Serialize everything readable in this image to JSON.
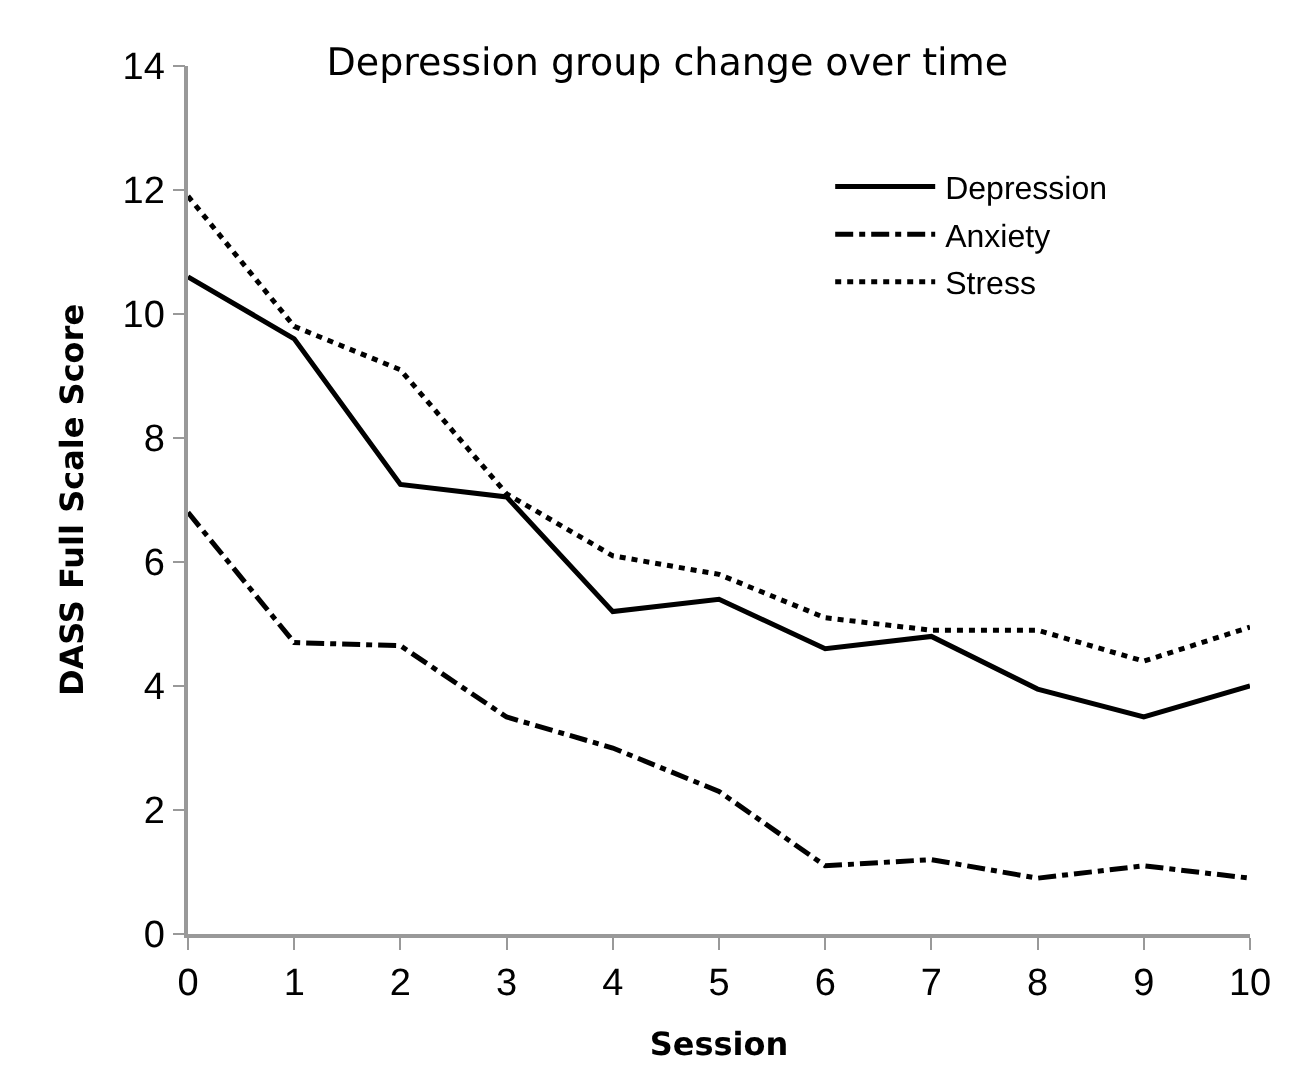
{
  "chart_data": {
    "type": "line",
    "title": "Depression group change over time",
    "xlabel": "Session",
    "ylabel": "DASS Full Scale Score",
    "x": [
      0,
      1,
      2,
      3,
      4,
      5,
      6,
      7,
      8,
      9,
      10
    ],
    "series": [
      {
        "name": "Depression",
        "color": "#000000",
        "line_style": "solid",
        "values": [
          10.6,
          9.6,
          7.25,
          7.05,
          5.2,
          5.4,
          4.6,
          4.8,
          3.95,
          3.5,
          4.0
        ]
      },
      {
        "name": "Anxiety",
        "color": "#000000",
        "line_style": "dashdot",
        "values": [
          6.8,
          4.7,
          4.65,
          3.5,
          3.0,
          2.3,
          1.1,
          1.2,
          0.9,
          1.1,
          0.9
        ]
      },
      {
        "name": "Stress",
        "color": "#000000",
        "line_style": "dotted",
        "values": [
          11.9,
          9.8,
          9.1,
          7.1,
          6.1,
          5.8,
          5.1,
          4.9,
          4.9,
          4.4,
          4.95
        ]
      }
    ],
    "xlim": [
      0,
      10
    ],
    "xticks": [
      0,
      1,
      2,
      3,
      4,
      5,
      6,
      7,
      8,
      9,
      10
    ],
    "ylim": [
      0,
      14
    ],
    "yticks": [
      0,
      2,
      4,
      6,
      8,
      10,
      12,
      14
    ],
    "legend": "top right",
    "marker": "none"
  }
}
